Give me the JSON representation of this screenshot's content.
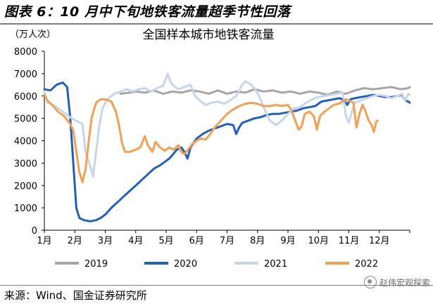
{
  "figure": {
    "title": "图表 6：10 月中下旬地铁客流量超季节性回落",
    "source": "来源：Wind、国金证券研究所",
    "watermark": "赵伟宏观探索"
  },
  "chart_data": {
    "type": "line",
    "title": "全国样本城市地铁客流量",
    "ylabel": "（万人次）",
    "ylim": [
      0,
      8000
    ],
    "yticks": [
      "0",
      "1000",
      "2000",
      "3000",
      "4000",
      "5000",
      "6000",
      "7000",
      "8000"
    ],
    "xlim": [
      0,
      12
    ],
    "xticks": [
      "1月",
      "2月",
      "3月",
      "4月",
      "5月",
      "6月",
      "7月",
      "8月",
      "9月",
      "10月",
      "11月",
      "12月"
    ],
    "legend_position": "bottom",
    "grid": false,
    "series": [
      {
        "name": "2019",
        "color": "#a6a6a6",
        "points": [
          [
            2.5,
            6100
          ],
          [
            2.8,
            6150
          ],
          [
            3.0,
            6200
          ],
          [
            3.3,
            6150
          ],
          [
            3.6,
            6250
          ],
          [
            3.9,
            6100
          ],
          [
            4.2,
            6200
          ],
          [
            4.5,
            6150
          ],
          [
            4.8,
            6250
          ],
          [
            5.1,
            6200
          ],
          [
            5.4,
            6100
          ],
          [
            5.7,
            6250
          ],
          [
            6.0,
            6100
          ],
          [
            6.3,
            6200
          ],
          [
            6.6,
            6150
          ],
          [
            6.9,
            6300
          ],
          [
            7.2,
            6200
          ],
          [
            7.5,
            6250
          ],
          [
            7.8,
            6150
          ],
          [
            8.1,
            6200
          ],
          [
            8.4,
            6100
          ],
          [
            8.7,
            6200
          ],
          [
            9.0,
            6150
          ],
          [
            9.3,
            6050
          ],
          [
            9.6,
            6200
          ],
          [
            9.9,
            6100
          ],
          [
            10.2,
            6250
          ],
          [
            10.5,
            6350
          ],
          [
            10.8,
            6300
          ],
          [
            11.1,
            6350
          ],
          [
            11.4,
            6400
          ],
          [
            11.7,
            6300
          ],
          [
            11.95,
            6350
          ],
          [
            12.0,
            6400
          ]
        ]
      },
      {
        "name": "2020",
        "color": "#1f5fbf",
        "points": [
          [
            0.0,
            6300
          ],
          [
            0.2,
            6250
          ],
          [
            0.4,
            6500
          ],
          [
            0.6,
            6600
          ],
          [
            0.75,
            6400
          ],
          [
            0.85,
            5000
          ],
          [
            0.95,
            3000
          ],
          [
            1.05,
            1000
          ],
          [
            1.15,
            550
          ],
          [
            1.3,
            450
          ],
          [
            1.5,
            400
          ],
          [
            1.7,
            450
          ],
          [
            1.85,
            550
          ],
          [
            2.0,
            700
          ],
          [
            2.2,
            1000
          ],
          [
            2.4,
            1250
          ],
          [
            2.6,
            1500
          ],
          [
            2.8,
            1750
          ],
          [
            3.0,
            2000
          ],
          [
            3.2,
            2250
          ],
          [
            3.4,
            2500
          ],
          [
            3.6,
            2750
          ],
          [
            3.8,
            2900
          ],
          [
            4.0,
            3100
          ],
          [
            4.1,
            3200
          ],
          [
            4.2,
            3350
          ],
          [
            4.35,
            3600
          ],
          [
            4.5,
            3700
          ],
          [
            4.6,
            3500
          ],
          [
            4.7,
            3200
          ],
          [
            4.8,
            3700
          ],
          [
            4.9,
            3900
          ],
          [
            5.0,
            4100
          ],
          [
            5.2,
            4300
          ],
          [
            5.4,
            4450
          ],
          [
            5.6,
            4550
          ],
          [
            5.8,
            4650
          ],
          [
            6.0,
            4750
          ],
          [
            6.2,
            4700
          ],
          [
            6.3,
            4300
          ],
          [
            6.4,
            4600
          ],
          [
            6.5,
            4800
          ],
          [
            6.7,
            4900
          ],
          [
            6.9,
            5000
          ],
          [
            7.1,
            5050
          ],
          [
            7.3,
            5150
          ],
          [
            7.5,
            5200
          ],
          [
            7.7,
            5200
          ],
          [
            7.9,
            5250
          ],
          [
            8.1,
            5300
          ],
          [
            8.3,
            5350
          ],
          [
            8.5,
            5450
          ],
          [
            8.7,
            5500
          ],
          [
            8.9,
            5550
          ],
          [
            9.0,
            5650
          ],
          [
            9.1,
            5750
          ],
          [
            9.3,
            5800
          ],
          [
            9.5,
            5850
          ],
          [
            9.7,
            5900
          ],
          [
            9.85,
            5800
          ],
          [
            9.95,
            5600
          ],
          [
            10.05,
            5850
          ],
          [
            10.2,
            5900
          ],
          [
            10.4,
            5950
          ],
          [
            10.6,
            6000
          ],
          [
            10.8,
            6050
          ],
          [
            11.0,
            6000
          ],
          [
            11.2,
            5950
          ],
          [
            11.4,
            5950
          ],
          [
            11.6,
            6000
          ],
          [
            11.75,
            6050
          ],
          [
            11.85,
            5800
          ],
          [
            11.95,
            5750
          ],
          [
            12.0,
            5700
          ]
        ]
      },
      {
        "name": "2021",
        "color": "#c6d6ea",
        "points": [
          [
            0.0,
            6200
          ],
          [
            0.1,
            5700
          ],
          [
            0.3,
            5600
          ],
          [
            0.6,
            5300
          ],
          [
            0.9,
            5000
          ],
          [
            1.1,
            4850
          ],
          [
            1.25,
            4750
          ],
          [
            1.35,
            3500
          ],
          [
            1.5,
            2900
          ],
          [
            1.6,
            2400
          ],
          [
            1.7,
            3500
          ],
          [
            1.8,
            4600
          ],
          [
            1.9,
            5400
          ],
          [
            2.0,
            5700
          ],
          [
            2.15,
            5950
          ],
          [
            2.3,
            6100
          ],
          [
            2.5,
            6200
          ],
          [
            2.7,
            6300
          ],
          [
            2.9,
            6200
          ],
          [
            3.1,
            6300
          ],
          [
            3.3,
            6350
          ],
          [
            3.5,
            6200
          ],
          [
            3.7,
            6350
          ],
          [
            3.9,
            6450
          ],
          [
            4.05,
            7000
          ],
          [
            4.15,
            6600
          ],
          [
            4.25,
            6450
          ],
          [
            4.4,
            6300
          ],
          [
            4.6,
            6400
          ],
          [
            4.8,
            6500
          ],
          [
            4.95,
            6000
          ],
          [
            5.1,
            5800
          ],
          [
            5.3,
            5600
          ],
          [
            5.5,
            5700
          ],
          [
            5.7,
            5750
          ],
          [
            5.9,
            5650
          ],
          [
            6.1,
            5800
          ],
          [
            6.3,
            6000
          ],
          [
            6.5,
            6500
          ],
          [
            6.6,
            6650
          ],
          [
            6.75,
            6550
          ],
          [
            6.9,
            6350
          ],
          [
            7.05,
            6000
          ],
          [
            7.2,
            5500
          ],
          [
            7.4,
            4900
          ],
          [
            7.6,
            4700
          ],
          [
            7.8,
            4900
          ],
          [
            8.0,
            5200
          ],
          [
            8.2,
            5450
          ],
          [
            8.4,
            5500
          ],
          [
            8.6,
            5700
          ],
          [
            8.8,
            5850
          ],
          [
            9.0,
            5950
          ],
          [
            9.2,
            6000
          ],
          [
            9.4,
            6050
          ],
          [
            9.6,
            6100
          ],
          [
            9.8,
            6150
          ],
          [
            9.9,
            5100
          ],
          [
            10.0,
            4800
          ],
          [
            10.1,
            5300
          ],
          [
            10.2,
            5700
          ],
          [
            10.4,
            5800
          ],
          [
            10.6,
            5900
          ],
          [
            10.8,
            6000
          ],
          [
            11.0,
            6050
          ],
          [
            11.2,
            6000
          ],
          [
            11.4,
            5900
          ],
          [
            11.6,
            6000
          ],
          [
            11.75,
            6100
          ],
          [
            11.85,
            5800
          ],
          [
            11.95,
            6100
          ],
          [
            12.0,
            6050
          ]
        ]
      },
      {
        "name": "2022",
        "color": "#f4a050",
        "points": [
          [
            0.0,
            6050
          ],
          [
            0.1,
            5800
          ],
          [
            0.25,
            5600
          ],
          [
            0.45,
            5300
          ],
          [
            0.65,
            5100
          ],
          [
            0.85,
            4750
          ],
          [
            0.95,
            4450
          ],
          [
            1.05,
            3500
          ],
          [
            1.15,
            2600
          ],
          [
            1.25,
            2150
          ],
          [
            1.35,
            2700
          ],
          [
            1.45,
            3900
          ],
          [
            1.55,
            5000
          ],
          [
            1.7,
            5700
          ],
          [
            1.85,
            5850
          ],
          [
            2.0,
            5850
          ],
          [
            2.2,
            5750
          ],
          [
            2.35,
            5300
          ],
          [
            2.45,
            4700
          ],
          [
            2.55,
            3900
          ],
          [
            2.65,
            3500
          ],
          [
            2.8,
            3500
          ],
          [
            3.0,
            3600
          ],
          [
            3.15,
            3700
          ],
          [
            3.3,
            4200
          ],
          [
            3.4,
            3800
          ],
          [
            3.55,
            3500
          ],
          [
            3.65,
            3950
          ],
          [
            3.8,
            3700
          ],
          [
            3.95,
            3550
          ],
          [
            4.1,
            3700
          ],
          [
            4.25,
            3600
          ],
          [
            4.4,
            3800
          ],
          [
            4.5,
            3500
          ],
          [
            4.6,
            3400
          ],
          [
            4.75,
            3650
          ],
          [
            4.85,
            3850
          ],
          [
            5.0,
            4000
          ],
          [
            5.15,
            4100
          ],
          [
            5.3,
            4050
          ],
          [
            5.45,
            4300
          ],
          [
            5.6,
            4600
          ],
          [
            5.8,
            4900
          ],
          [
            6.0,
            5200
          ],
          [
            6.2,
            5400
          ],
          [
            6.4,
            5550
          ],
          [
            6.6,
            5650
          ],
          [
            6.8,
            5700
          ],
          [
            7.0,
            5650
          ],
          [
            7.2,
            5550
          ],
          [
            7.4,
            5550
          ],
          [
            7.6,
            5600
          ],
          [
            7.8,
            5550
          ],
          [
            8.0,
            5600
          ],
          [
            8.1,
            5400
          ],
          [
            8.2,
            5050
          ],
          [
            8.35,
            4500
          ],
          [
            8.45,
            4650
          ],
          [
            8.55,
            5200
          ],
          [
            8.7,
            5300
          ],
          [
            8.85,
            5100
          ],
          [
            8.95,
            4500
          ],
          [
            9.05,
            5100
          ],
          [
            9.2,
            5300
          ],
          [
            9.35,
            5450
          ],
          [
            9.5,
            5600
          ],
          [
            9.65,
            5650
          ],
          [
            9.8,
            5750
          ],
          [
            9.9,
            5850
          ],
          [
            10.0,
            5800
          ],
          [
            10.15,
            5700
          ],
          [
            10.25,
            4600
          ],
          [
            10.35,
            5200
          ],
          [
            10.45,
            5600
          ],
          [
            10.55,
            5300
          ],
          [
            10.65,
            4900
          ],
          [
            10.75,
            4700
          ],
          [
            10.82,
            4400
          ],
          [
            10.9,
            4850
          ],
          [
            10.95,
            4900
          ]
        ]
      }
    ]
  }
}
